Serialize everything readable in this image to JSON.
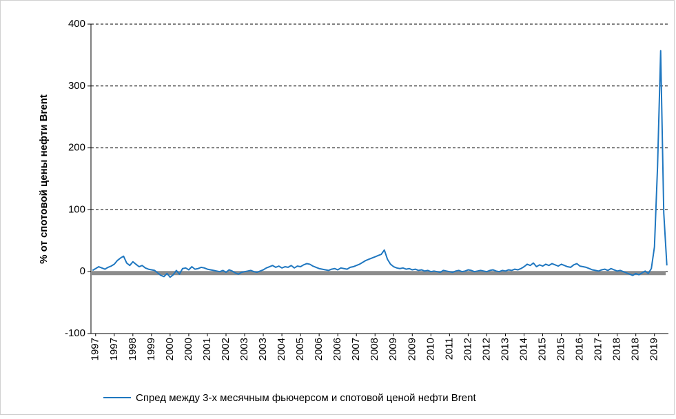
{
  "chart_data": {
    "type": "line",
    "y_label": "% от спотовой  цены нефти Brent",
    "categories": [
      null,
      "1997",
      null,
      null,
      null,
      null,
      null,
      "1997",
      null,
      null,
      null,
      null,
      null,
      "1998",
      null,
      null,
      null,
      null,
      null,
      "1999",
      null,
      null,
      null,
      null,
      null,
      "2000",
      null,
      null,
      null,
      null,
      null,
      "2000",
      null,
      null,
      null,
      null,
      null,
      "2001",
      null,
      null,
      null,
      null,
      null,
      "2002",
      null,
      null,
      null,
      null,
      null,
      "2003",
      null,
      null,
      null,
      null,
      null,
      "2003",
      null,
      null,
      null,
      null,
      null,
      "2004",
      null,
      null,
      null,
      null,
      null,
      "2005",
      null,
      null,
      null,
      null,
      null,
      "2006",
      null,
      null,
      null,
      null,
      null,
      "2006",
      null,
      null,
      null,
      null,
      null,
      "2007",
      null,
      null,
      null,
      null,
      null,
      "2008",
      null,
      null,
      null,
      null,
      null,
      "2009",
      null,
      null,
      null,
      null,
      null,
      "2009",
      null,
      null,
      null,
      null,
      null,
      "2010",
      null,
      null,
      null,
      null,
      null,
      "2011",
      null,
      null,
      null,
      null,
      null,
      "2012",
      null,
      null,
      null,
      null,
      null,
      "2012",
      null,
      null,
      null,
      null,
      null,
      "2013",
      null,
      null,
      null,
      null,
      null,
      "2014",
      null,
      null,
      null,
      null,
      null,
      "2015",
      null,
      null,
      null,
      null,
      null,
      "2015",
      null,
      null,
      null,
      null,
      null,
      "2016",
      null,
      null,
      null,
      null,
      null,
      "2017",
      null,
      null,
      null,
      null,
      null,
      "2018",
      null,
      null,
      null,
      null,
      null,
      "2018",
      null,
      null,
      null,
      null,
      null,
      "2019",
      null,
      null,
      null,
      null
    ],
    "series": [
      {
        "name": "Спред между 3-х месячным фьючерсом  и спотовой ценой  нефти Brent",
        "color": "#1f77c0",
        "values": [
          2,
          5,
          8,
          6,
          4,
          7,
          9,
          12,
          18,
          22,
          25,
          14,
          10,
          16,
          12,
          8,
          10,
          6,
          4,
          3,
          2,
          -2,
          -6,
          -8,
          -3,
          -9,
          -5,
          2,
          -4,
          5,
          6,
          3,
          8,
          4,
          5,
          7,
          6,
          4,
          3,
          2,
          1,
          0,
          2,
          -1,
          3,
          1,
          -2,
          -4,
          -1,
          0,
          1,
          2,
          0,
          -1,
          1,
          3,
          6,
          8,
          10,
          7,
          9,
          6,
          8,
          7,
          10,
          6,
          9,
          8,
          11,
          13,
          12,
          9,
          7,
          5,
          4,
          3,
          2,
          4,
          5,
          3,
          6,
          5,
          4,
          7,
          8,
          10,
          12,
          15,
          18,
          20,
          22,
          24,
          26,
          28,
          35,
          20,
          12,
          8,
          6,
          5,
          6,
          4,
          5,
          3,
          4,
          2,
          3,
          1,
          2,
          0,
          1,
          0,
          -1,
          2,
          1,
          0,
          -1,
          1,
          2,
          0,
          1,
          3,
          2,
          0,
          1,
          2,
          1,
          0,
          2,
          3,
          1,
          0,
          2,
          1,
          3,
          2,
          4,
          3,
          5,
          8,
          12,
          10,
          14,
          8,
          11,
          9,
          12,
          10,
          13,
          11,
          9,
          12,
          10,
          8,
          7,
          11,
          13,
          9,
          8,
          7,
          5,
          3,
          2,
          1,
          3,
          4,
          2,
          5,
          3,
          1,
          2,
          0,
          -2,
          -4,
          -6,
          -3,
          -5,
          -2,
          1,
          -3,
          5,
          40,
          170,
          357,
          95,
          10
        ]
      }
    ],
    "ylim": [
      -100,
      400
    ],
    "yticks": [
      -100,
      0,
      100,
      200,
      300,
      400
    ],
    "grid": true
  }
}
